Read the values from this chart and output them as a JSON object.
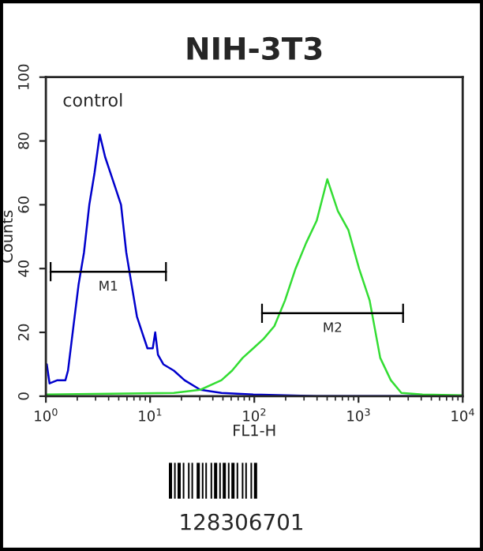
{
  "chart_data": {
    "type": "line",
    "title": "NIH-3T3",
    "xlabel": "FL1-H",
    "ylabel": "Counts",
    "log": "x",
    "xlim": [
      1,
      10000
    ],
    "ylim": [
      0,
      100
    ],
    "xticks": [
      {
        "value": 1,
        "label": "10$^{0}$"
      },
      {
        "value": 10,
        "label": "10$^{1}$"
      },
      {
        "value": 100,
        "label": "10$^{2}$"
      },
      {
        "value": 1000,
        "label": "10$^{3}$"
      },
      {
        "value": 10000,
        "label": "10$^{4}$"
      }
    ],
    "yticks": [
      0,
      20,
      40,
      60,
      80,
      100
    ],
    "grid": false,
    "legend": false,
    "marker": "none",
    "line_style": "solid",
    "series": [
      {
        "color": "#0000cc",
        "x": [
          1.02,
          1.085,
          1.29,
          1.54,
          1.63,
          1.84,
          2.06,
          2.32,
          2.61,
          2.93,
          3.29,
          3.7,
          4.16,
          4.68,
          5.26,
          5.91,
          6.64,
          7.47,
          8.39,
          9.43,
          10.6,
          11.2,
          11.9,
          13.4,
          16.9,
          21.4,
          30.3,
          48.4,
          97.7,
          397,
          10000
        ],
        "values": [
          10,
          4,
          5,
          5,
          8,
          22,
          35,
          45,
          60,
          70,
          82,
          75,
          70,
          65,
          60,
          45,
          35,
          25,
          20,
          15,
          15,
          20,
          13,
          10,
          8,
          5,
          2,
          1,
          0.5,
          0,
          0
        ]
      },
      {
        "color": "#33dd33",
        "x": [
          1,
          16.9,
          30.3,
          48.4,
          61.2,
          77.3,
          97.7,
          123,
          156,
          197,
          249,
          314,
          397,
          502,
          634,
          801,
          1012,
          1279,
          1616,
          2042,
          2578,
          4113,
          10000
        ],
        "values": [
          0.5,
          1,
          2,
          5,
          8,
          12,
          15,
          18,
          22,
          30,
          40,
          48,
          55,
          68,
          58,
          52,
          40,
          30,
          12,
          5,
          1,
          0.5,
          0.3
        ]
      },
      {
        "name": "M1",
        "color": "#000000",
        "x": [
          1.11,
          14.2
        ],
        "values": [
          39,
          39
        ],
        "errors": [
          3,
          3
        ]
      },
      {
        "name": "M2",
        "color": "#000000",
        "x": [
          118.6,
          2678
        ],
        "values": [
          26,
          26
        ],
        "errors": [
          3,
          3
        ]
      }
    ],
    "annotations": [
      "control",
      "128306701"
    ]
  }
}
